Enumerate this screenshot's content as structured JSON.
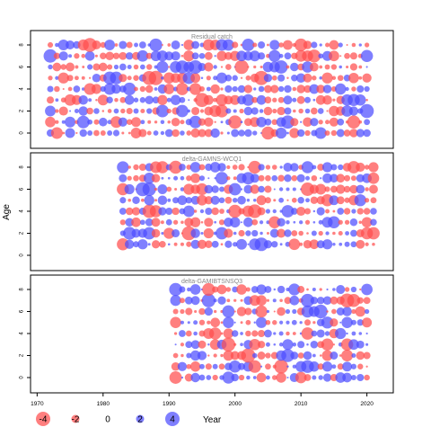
{
  "chart_data": {
    "type": "scatter",
    "ylabel": "Age",
    "xlabel": "Year",
    "x_ticks": [
      1970,
      1980,
      1990,
      2000,
      2010,
      2020
    ],
    "y_ticks": [
      0,
      2,
      4,
      6,
      8
    ],
    "xlim": [
      1969,
      2024
    ],
    "ylim": [
      -0.8,
      9.2
    ],
    "positive_color": "#4d4dff",
    "negative_color": "#ff4d4d",
    "panels": [
      {
        "title": "Residual catch",
        "year_start": 1972,
        "year_end": 2020,
        "ages": [
          0,
          1,
          2,
          3,
          4,
          5,
          6,
          7,
          8
        ]
      },
      {
        "title": "delta-GAMNS-WCQ1",
        "year_start": 1983,
        "year_end": 2021,
        "ages": [
          1,
          2,
          3,
          4,
          5,
          6,
          7,
          8
        ]
      },
      {
        "title": "delta-GAMIBTSNSQ3",
        "year_start": 1991,
        "year_end": 2020,
        "ages": [
          0,
          1,
          2,
          3,
          4,
          5,
          6,
          7,
          8
        ]
      }
    ],
    "legend": {
      "values": [
        -4,
        -2,
        0,
        2,
        4
      ],
      "labels": [
        "-4",
        "-2",
        "0",
        "2",
        "4"
      ],
      "title": "Year"
    }
  }
}
